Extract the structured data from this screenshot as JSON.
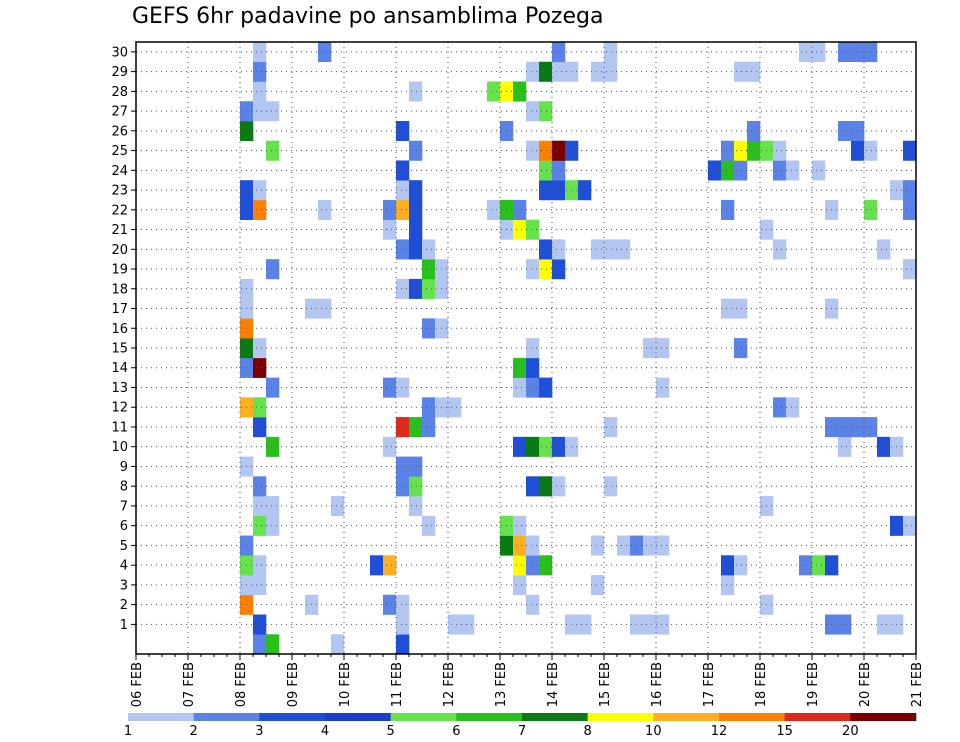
{
  "chart_data": {
    "type": "heatmap",
    "title": "GEFS 6hr padavine po ansamblima Pozega",
    "xlabel": "",
    "ylabel": "",
    "x_tick_labels": [
      "06 FEB",
      "07 FEB",
      "08 FEB",
      "09 FEB",
      "10 FEB",
      "11 FEB",
      "12 FEB",
      "13 FEB",
      "14 FEB",
      "15 FEB",
      "16 FEB",
      "17 FEB",
      "18 FEB",
      "19 FEB",
      "20 FEB",
      "21 FEB"
    ],
    "y_tick_labels": [
      1,
      2,
      3,
      4,
      5,
      6,
      7,
      8,
      9,
      10,
      11,
      12,
      13,
      14,
      15,
      16,
      17,
      18,
      19,
      20,
      21,
      22,
      23,
      24,
      25,
      26,
      27,
      28,
      29,
      30
    ],
    "x_unit": "6-hour step (4 per day, starting 06 FEB 00Z)",
    "y_unit": "ensemble member",
    "grid": true,
    "legend": {
      "placement": "bottom",
      "labels": [
        "1",
        "2",
        "3",
        "4",
        "5",
        "6",
        "7",
        "8",
        "10",
        "12",
        "15",
        "20"
      ],
      "colors": [
        "#b3c6f2",
        "#5b82e6",
        "#1f4fd6",
        "#1a3fcc",
        "#66e24c",
        "#2bbf1e",
        "#0a7a12",
        "#ffff00",
        "#ffb020",
        "#ff7f00",
        "#e0281c",
        "#7a0000"
      ]
    },
    "cells": [
      [
        0,
        9,
        2
      ],
      [
        0,
        10,
        6
      ],
      [
        0,
        15,
        1
      ],
      [
        0,
        20,
        3
      ],
      [
        1,
        9,
        3
      ],
      [
        1,
        20,
        1
      ],
      [
        1,
        24,
        1
      ],
      [
        1,
        25,
        1
      ],
      [
        1,
        33,
        1
      ],
      [
        1,
        34,
        1
      ],
      [
        1,
        38,
        1
      ],
      [
        1,
        39,
        1
      ],
      [
        1,
        40,
        1
      ],
      [
        1,
        53,
        2
      ],
      [
        1,
        54,
        2
      ],
      [
        1,
        57,
        1
      ],
      [
        1,
        58,
        1
      ],
      [
        2,
        8,
        12
      ],
      [
        2,
        13,
        1
      ],
      [
        2,
        19,
        2
      ],
      [
        2,
        20,
        1
      ],
      [
        2,
        30,
        1
      ],
      [
        2,
        48,
        1
      ],
      [
        3,
        8,
        1
      ],
      [
        3,
        9,
        1
      ],
      [
        3,
        29,
        1
      ],
      [
        3,
        35,
        1
      ],
      [
        3,
        45,
        1
      ],
      [
        4,
        8,
        5
      ],
      [
        4,
        9,
        1
      ],
      [
        4,
        18,
        3
      ],
      [
        4,
        19,
        10
      ],
      [
        4,
        29,
        8
      ],
      [
        4,
        30,
        2
      ],
      [
        4,
        31,
        6
      ],
      [
        4,
        45,
        3
      ],
      [
        4,
        46,
        1
      ],
      [
        4,
        51,
        2
      ],
      [
        4,
        52,
        5
      ],
      [
        4,
        53,
        3
      ],
      [
        5,
        8,
        2
      ],
      [
        5,
        28,
        7
      ],
      [
        5,
        29,
        10
      ],
      [
        5,
        30,
        1
      ],
      [
        5,
        35,
        1
      ],
      [
        5,
        37,
        1
      ],
      [
        5,
        38,
        2
      ],
      [
        5,
        39,
        1
      ],
      [
        5,
        40,
        1
      ],
      [
        6,
        9,
        5
      ],
      [
        6,
        10,
        1
      ],
      [
        6,
        22,
        1
      ],
      [
        6,
        28,
        5
      ],
      [
        6,
        29,
        1
      ],
      [
        6,
        58,
        3
      ],
      [
        6,
        59,
        1
      ],
      [
        7,
        9,
        1
      ],
      [
        7,
        10,
        1
      ],
      [
        7,
        15,
        1
      ],
      [
        7,
        21,
        1
      ],
      [
        7,
        48,
        1
      ],
      [
        8,
        9,
        2
      ],
      [
        8,
        20,
        2
      ],
      [
        8,
        21,
        5
      ],
      [
        8,
        30,
        3
      ],
      [
        8,
        31,
        7
      ],
      [
        8,
        32,
        1
      ],
      [
        8,
        36,
        1
      ],
      [
        9,
        8,
        1
      ],
      [
        9,
        20,
        2
      ],
      [
        9,
        21,
        2
      ],
      [
        10,
        10,
        6
      ],
      [
        10,
        19,
        1
      ],
      [
        10,
        29,
        3
      ],
      [
        10,
        30,
        7
      ],
      [
        10,
        31,
        5
      ],
      [
        10,
        32,
        3
      ],
      [
        10,
        33,
        1
      ],
      [
        10,
        54,
        1
      ],
      [
        10,
        57,
        3
      ],
      [
        10,
        58,
        1
      ],
      [
        11,
        9,
        3
      ],
      [
        11,
        20,
        15
      ],
      [
        11,
        21,
        6
      ],
      [
        11,
        22,
        2
      ],
      [
        11,
        36,
        1
      ],
      [
        11,
        53,
        2
      ],
      [
        11,
        54,
        2
      ],
      [
        11,
        55,
        2
      ],
      [
        11,
        56,
        2
      ],
      [
        12,
        8,
        10
      ],
      [
        12,
        9,
        5
      ],
      [
        12,
        22,
        2
      ],
      [
        12,
        23,
        1
      ],
      [
        12,
        24,
        1
      ],
      [
        12,
        49,
        2
      ],
      [
        12,
        50,
        1
      ],
      [
        13,
        10,
        2
      ],
      [
        13,
        19,
        2
      ],
      [
        13,
        20,
        1
      ],
      [
        13,
        29,
        1
      ],
      [
        13,
        30,
        2
      ],
      [
        13,
        31,
        3
      ],
      [
        13,
        40,
        1
      ],
      [
        14,
        8,
        2
      ],
      [
        14,
        9,
        20
      ],
      [
        14,
        29,
        6
      ],
      [
        14,
        30,
        3
      ],
      [
        15,
        8,
        7
      ],
      [
        15,
        9,
        1
      ],
      [
        15,
        30,
        1
      ],
      [
        15,
        39,
        1
      ],
      [
        15,
        40,
        1
      ],
      [
        15,
        46,
        2
      ],
      [
        16,
        8,
        12
      ],
      [
        16,
        22,
        2
      ],
      [
        16,
        23,
        1
      ],
      [
        17,
        8,
        1
      ],
      [
        17,
        13,
        1
      ],
      [
        17,
        14,
        1
      ],
      [
        17,
        45,
        1
      ],
      [
        17,
        46,
        1
      ],
      [
        17,
        53,
        1
      ],
      [
        18,
        8,
        1
      ],
      [
        18,
        20,
        1
      ],
      [
        18,
        21,
        3
      ],
      [
        18,
        22,
        5
      ],
      [
        18,
        23,
        1
      ],
      [
        19,
        10,
        2
      ],
      [
        19,
        22,
        6
      ],
      [
        19,
        23,
        1
      ],
      [
        19,
        30,
        1
      ],
      [
        19,
        31,
        8
      ],
      [
        19,
        32,
        3
      ],
      [
        19,
        59,
        1
      ],
      [
        20,
        20,
        2
      ],
      [
        20,
        21,
        3
      ],
      [
        20,
        22,
        1
      ],
      [
        20,
        31,
        3
      ],
      [
        20,
        32,
        1
      ],
      [
        20,
        35,
        1
      ],
      [
        20,
        36,
        1
      ],
      [
        20,
        37,
        1
      ],
      [
        20,
        49,
        1
      ],
      [
        20,
        57,
        1
      ],
      [
        21,
        19,
        1
      ],
      [
        21,
        21,
        3
      ],
      [
        21,
        28,
        1
      ],
      [
        21,
        29,
        8
      ],
      [
        21,
        30,
        5
      ],
      [
        21,
        48,
        1
      ],
      [
        22,
        8,
        3
      ],
      [
        22,
        9,
        12
      ],
      [
        22,
        14,
        1
      ],
      [
        22,
        19,
        2
      ],
      [
        22,
        20,
        10
      ],
      [
        22,
        21,
        3
      ],
      [
        22,
        27,
        1
      ],
      [
        22,
        28,
        6
      ],
      [
        22,
        29,
        2
      ],
      [
        22,
        45,
        2
      ],
      [
        22,
        53,
        1
      ],
      [
        22,
        56,
        5
      ],
      [
        22,
        59,
        2
      ],
      [
        23,
        8,
        3
      ],
      [
        23,
        9,
        1
      ],
      [
        23,
        20,
        1
      ],
      [
        23,
        21,
        3
      ],
      [
        23,
        31,
        3
      ],
      [
        23,
        32,
        3
      ],
      [
        23,
        33,
        5
      ],
      [
        23,
        34,
        3
      ],
      [
        23,
        58,
        1
      ],
      [
        23,
        59,
        2
      ],
      [
        24,
        20,
        3
      ],
      [
        24,
        31,
        5
      ],
      [
        24,
        32,
        2
      ],
      [
        24,
        44,
        3
      ],
      [
        24,
        45,
        6
      ],
      [
        24,
        46,
        2
      ],
      [
        24,
        49,
        2
      ],
      [
        24,
        50,
        1
      ],
      [
        24,
        52,
        1
      ],
      [
        25,
        10,
        5
      ],
      [
        25,
        21,
        2
      ],
      [
        25,
        30,
        1
      ],
      [
        25,
        31,
        12
      ],
      [
        25,
        32,
        20
      ],
      [
        25,
        33,
        3
      ],
      [
        25,
        45,
        2
      ],
      [
        25,
        46,
        8
      ],
      [
        25,
        47,
        6
      ],
      [
        25,
        48,
        5
      ],
      [
        25,
        49,
        1
      ],
      [
        25,
        55,
        3
      ],
      [
        25,
        56,
        1
      ],
      [
        25,
        59,
        3
      ],
      [
        26,
        8,
        7
      ],
      [
        26,
        20,
        3
      ],
      [
        26,
        28,
        2
      ],
      [
        26,
        47,
        2
      ],
      [
        26,
        54,
        2
      ],
      [
        26,
        55,
        2
      ],
      [
        27,
        8,
        2
      ],
      [
        27,
        9,
        1
      ],
      [
        27,
        10,
        1
      ],
      [
        27,
        30,
        1
      ],
      [
        27,
        31,
        5
      ],
      [
        28,
        9,
        1
      ],
      [
        28,
        21,
        1
      ],
      [
        28,
        27,
        5
      ],
      [
        28,
        28,
        8
      ],
      [
        28,
        29,
        6
      ],
      [
        29,
        9,
        2
      ],
      [
        29,
        30,
        1
      ],
      [
        29,
        31,
        7
      ],
      [
        29,
        32,
        1
      ],
      [
        29,
        33,
        1
      ],
      [
        29,
        35,
        1
      ],
      [
        29,
        36,
        1
      ],
      [
        29,
        46,
        1
      ],
      [
        29,
        47,
        1
      ],
      [
        30,
        9,
        1
      ],
      [
        30,
        14,
        2
      ],
      [
        30,
        32,
        2
      ],
      [
        30,
        36,
        1
      ],
      [
        30,
        51,
        1
      ],
      [
        30,
        52,
        1
      ],
      [
        30,
        54,
        2
      ],
      [
        30,
        55,
        2
      ],
      [
        30,
        56,
        2
      ]
    ]
  }
}
